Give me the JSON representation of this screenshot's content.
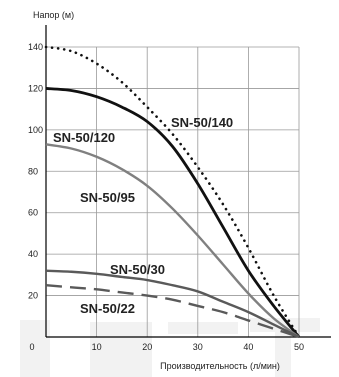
{
  "chart_data": {
    "type": "line",
    "ylabel": "Напор (м)",
    "xlabel": "Производительность (л/мин)",
    "xlim": [
      0,
      50
    ],
    "ylim": [
      0,
      140
    ],
    "x_ticks": [
      "0",
      "10",
      "20",
      "30",
      "40",
      "50"
    ],
    "y_ticks": [
      "20",
      "40",
      "60",
      "80",
      "100",
      "120",
      "140"
    ],
    "grid": true,
    "series": [
      {
        "name": "SN-50/140",
        "style": "dotted",
        "color": "#111111",
        "points": [
          [
            0,
            140
          ],
          [
            5,
            138
          ],
          [
            10,
            132
          ],
          [
            15,
            123
          ],
          [
            20,
            111
          ],
          [
            25,
            98
          ],
          [
            30,
            82
          ],
          [
            35,
            64
          ],
          [
            40,
            43
          ],
          [
            45,
            20
          ],
          [
            50,
            0
          ]
        ]
      },
      {
        "name": "SN-50/120",
        "style": "solid-bold",
        "color": "#111111",
        "points": [
          [
            0,
            120
          ],
          [
            5,
            119
          ],
          [
            10,
            116
          ],
          [
            15,
            111
          ],
          [
            20,
            104
          ],
          [
            25,
            92
          ],
          [
            30,
            74
          ],
          [
            35,
            53
          ],
          [
            40,
            32
          ],
          [
            45,
            15
          ],
          [
            50,
            0
          ]
        ]
      },
      {
        "name": "SN-50/95",
        "style": "solid",
        "color": "#808080",
        "points": [
          [
            0,
            93
          ],
          [
            5,
            91
          ],
          [
            10,
            87
          ],
          [
            15,
            81
          ],
          [
            20,
            73
          ],
          [
            25,
            62
          ],
          [
            30,
            49
          ],
          [
            35,
            35
          ],
          [
            40,
            21
          ],
          [
            45,
            9
          ],
          [
            50,
            0
          ]
        ]
      },
      {
        "name": "SN-50/30",
        "style": "solid",
        "color": "#5a5a5a",
        "points": [
          [
            0,
            32
          ],
          [
            5,
            31.5
          ],
          [
            10,
            30.5
          ],
          [
            15,
            29
          ],
          [
            20,
            27.5
          ],
          [
            25,
            25
          ],
          [
            30,
            22
          ],
          [
            35,
            17
          ],
          [
            40,
            12
          ],
          [
            45,
            6
          ],
          [
            50,
            0
          ]
        ]
      },
      {
        "name": "SN-50/22",
        "style": "dashed",
        "color": "#5a5a5a",
        "points": [
          [
            0,
            25
          ],
          [
            5,
            24
          ],
          [
            10,
            23
          ],
          [
            15,
            21.5
          ],
          [
            20,
            20
          ],
          [
            25,
            18
          ],
          [
            30,
            15
          ],
          [
            35,
            12
          ],
          [
            40,
            8
          ],
          [
            45,
            4
          ],
          [
            50,
            0
          ]
        ]
      }
    ]
  }
}
